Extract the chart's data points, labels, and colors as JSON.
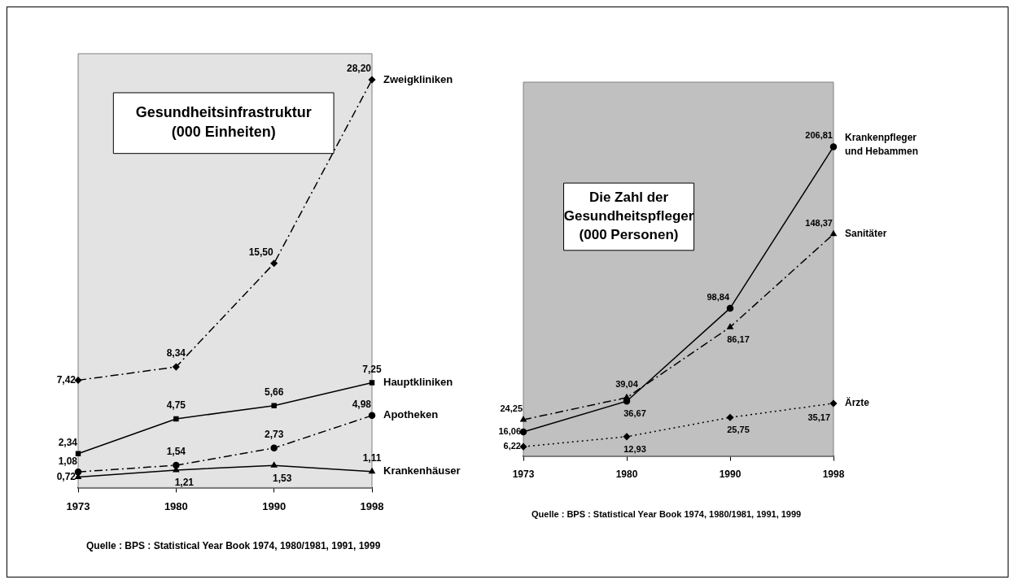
{
  "chart_data": [
    {
      "type": "line",
      "title": "Gesundheitsinfrastruktur",
      "subtitle": "(000 Einheiten)",
      "categories": [
        "1973",
        "1980",
        "1990",
        "1998"
      ],
      "legend": false,
      "grid": false,
      "series": [
        {
          "name": "Zweigkliniken",
          "color": "#000000",
          "values": [
            7.42,
            8.34,
            15.5,
            28.2
          ],
          "value_labels": [
            "7,42",
            "8,34",
            "15,50",
            "28,20"
          ],
          "marker": "diamond",
          "line_style": "dashed"
        },
        {
          "name": "Hauptkliniken",
          "color": "#000000",
          "values": [
            2.34,
            4.75,
            5.66,
            7.25
          ],
          "value_labels": [
            "2,34",
            "4,75",
            "5,66",
            "7,25"
          ],
          "marker": "square",
          "line_style": "solid"
        },
        {
          "name": "Apotheken",
          "color": "#000000",
          "values": [
            1.08,
            1.54,
            2.73,
            4.98
          ],
          "value_labels": [
            "1,08",
            "1,54",
            "2,73",
            "4,98"
          ],
          "marker": "circle",
          "line_style": "dashed"
        },
        {
          "name": "Krankenhäuser",
          "color": "#000000",
          "values": [
            0.72,
            1.21,
            1.53,
            1.11
          ],
          "value_labels": [
            "0,72",
            "1,21",
            "1,53",
            "1,11"
          ],
          "marker": "triangle",
          "line_style": "solid"
        }
      ],
      "bands": [
        {
          "axis": "x",
          "from": "1973",
          "to": "1998",
          "color": "#e3e3e3"
        }
      ],
      "annotations": [
        "Quelle : BPS : Statistical Year Book 1974, 1980/1981, 1991, 1999"
      ]
    },
    {
      "type": "line",
      "title": "Die Zahl der Gesundheitspfleger",
      "subtitle": "(000 Personen)",
      "categories": [
        "1973",
        "1980",
        "1990",
        "1998"
      ],
      "legend": false,
      "grid": false,
      "series": [
        {
          "name": "Krankenpfleger und Hebammen",
          "color": "#000000",
          "values": [
            16.06,
            36.67,
            98.84,
            206.81
          ],
          "value_labels": [
            "16,06",
            "36,67",
            "98,84",
            "206,81"
          ],
          "marker": "circle",
          "line_style": "solid"
        },
        {
          "name": "Sanitäter",
          "color": "#000000",
          "values": [
            24.25,
            39.04,
            86.17,
            148.37
          ],
          "value_labels": [
            "24,25",
            "39,04",
            "86,17",
            "148,37"
          ],
          "marker": "triangle",
          "line_style": "dashed"
        },
        {
          "name": "Ärzte",
          "color": "#000000",
          "values": [
            6.22,
            12.93,
            25.75,
            35.17
          ],
          "value_labels": [
            "6,22",
            "12,93",
            "25,75",
            "35,17"
          ],
          "marker": "diamond",
          "line_style": "dotted"
        }
      ],
      "bands": [
        {
          "axis": "x",
          "from": "1973",
          "to": "1998",
          "color": "#c0c0c0"
        }
      ],
      "annotations": [
        "Quelle : BPS : Statistical Year Book 1974, 1980/1981, 1991, 1999"
      ]
    }
  ]
}
